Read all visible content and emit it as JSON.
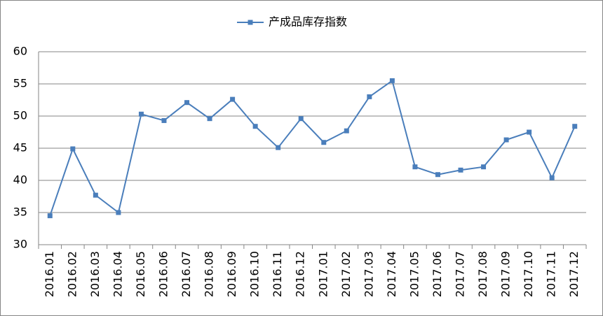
{
  "chart_data": {
    "type": "line",
    "categories": [
      "2016.01",
      "2016.02",
      "2016.03",
      "2016.04",
      "2016.05",
      "2016.06",
      "2016.07",
      "2016.08",
      "2016.09",
      "2016.10",
      "2016.11",
      "2016.12",
      "2017.01",
      "2017.02",
      "2017.03",
      "2017.04",
      "2017.05",
      "2017.06",
      "2017.07",
      "2017.08",
      "2017.09",
      "2017.10",
      "2017.11",
      "2017.12"
    ],
    "series": [
      {
        "name": "产成品库存指数",
        "color": "#4a7ebb",
        "values": [
          34.5,
          44.9,
          37.7,
          35.0,
          50.3,
          49.3,
          52.1,
          49.6,
          52.6,
          48.4,
          45.1,
          49.6,
          45.9,
          47.7,
          53.0,
          55.5,
          42.1,
          40.9,
          41.6,
          42.1,
          46.3,
          47.5,
          40.4,
          48.4
        ]
      }
    ],
    "ylim": [
      30,
      60
    ],
    "yticks": [
      30,
      35,
      40,
      45,
      50,
      55,
      60
    ],
    "grid": true,
    "legend": "top"
  }
}
